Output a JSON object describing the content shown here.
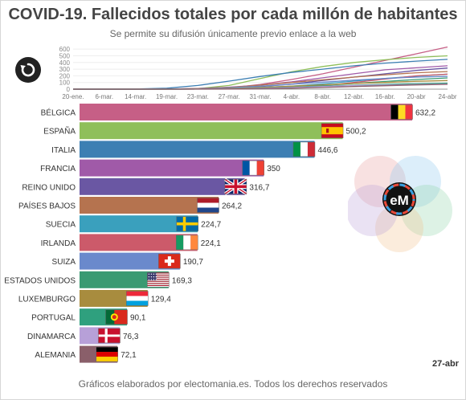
{
  "title": "COVID-19. Fallecidos totales por cada millón de habitantes",
  "subtitle": "Se permite su difusión únicamente previo enlace a la web",
  "footer": "Gráficos elaborados por electomania.es. Todos los derechos reservados",
  "current_date": "27-abr",
  "logo_text": "eM",
  "icons": {
    "replay": "replay-icon"
  },
  "chart_data": [
    {
      "type": "bar",
      "orientation": "horizontal",
      "title": "COVID-19. Fallecidos totales por cada millón de habitantes",
      "categories": [
        "BÉLGICA",
        "ESPAÑA",
        "ITALIA",
        "FRANCIA",
        "REINO UNIDO",
        "PAÍSES BAJOS",
        "SUECIA",
        "IRLANDA",
        "SUIZA",
        "ESTADOS UNIDOS",
        "LUXEMBURGO",
        "PORTUGAL",
        "DINAMARCA",
        "ALEMANIA"
      ],
      "values": [
        632.2,
        500.2,
        446.6,
        350,
        316.7,
        264.2,
        224.7,
        224.1,
        190.7,
        169.3,
        129.4,
        90.1,
        76.3,
        72.1
      ],
      "value_labels": [
        "632,2",
        "500,2",
        "446,6",
        "350",
        "316,7",
        "264,2",
        "224,7",
        "224,1",
        "190,7",
        "169,3",
        "129,4",
        "90,1",
        "76,3",
        "72,1"
      ],
      "colors": [
        "#c65f86",
        "#8fbf5a",
        "#3d7fb3",
        "#a05aa8",
        "#6a57a3",
        "#b5734f",
        "#3aa0bd",
        "#cc5a6a",
        "#6a89cc",
        "#3a9a72",
        "#a88c3e",
        "#2fa07e",
        "#b7a0d8",
        "#8a5f6a"
      ],
      "flags": [
        "belgium",
        "spain",
        "italy",
        "france",
        "uk",
        "netherlands",
        "sweden",
        "ireland",
        "switzerland",
        "usa",
        "luxembourg",
        "portugal",
        "denmark",
        "germany"
      ],
      "xlim": [
        0,
        632.2
      ]
    },
    {
      "type": "line",
      "x_ticks": [
        "20-ene.",
        "6-mar.",
        "14-mar.",
        "19-mar.",
        "23-mar.",
        "27-mar.",
        "31-mar.",
        "4-abr.",
        "8-abr.",
        "12-abr.",
        "16-abr.",
        "20-abr",
        "24-abr"
      ],
      "y_ticks": [
        0,
        100,
        200,
        300,
        400,
        500,
        600
      ],
      "ylim": [
        0,
        650
      ],
      "series": [
        {
          "color": "#c65f86",
          "values": [
            0,
            0,
            0,
            0,
            2,
            18,
            70,
            145,
            230,
            330,
            430,
            530,
            632
          ]
        },
        {
          "color": "#8fbf5a",
          "values": [
            0,
            0,
            0,
            1,
            8,
            55,
            160,
            260,
            340,
            400,
            440,
            475,
            500
          ]
        },
        {
          "color": "#3d7fb3",
          "values": [
            0,
            0,
            3,
            15,
            55,
            120,
            190,
            250,
            300,
            350,
            390,
            420,
            446
          ]
        },
        {
          "color": "#a05aa8",
          "values": [
            0,
            0,
            0,
            2,
            10,
            30,
            60,
            110,
            170,
            230,
            290,
            320,
            350
          ]
        },
        {
          "color": "#6a57a3",
          "values": [
            0,
            0,
            0,
            1,
            5,
            15,
            40,
            75,
            130,
            180,
            230,
            280,
            317
          ]
        },
        {
          "color": "#b5734f",
          "values": [
            0,
            0,
            0,
            1,
            8,
            25,
            60,
            100,
            140,
            180,
            215,
            245,
            264
          ]
        },
        {
          "color": "#3aa0bd",
          "values": [
            0,
            0,
            0,
            0,
            3,
            10,
            25,
            45,
            80,
            120,
            160,
            195,
            225
          ]
        },
        {
          "color": "#cc5a6a",
          "values": [
            0,
            0,
            0,
            0,
            1,
            3,
            10,
            25,
            50,
            100,
            150,
            200,
            224
          ]
        },
        {
          "color": "#6a89cc",
          "values": [
            0,
            0,
            0,
            1,
            5,
            20,
            45,
            75,
            105,
            135,
            160,
            180,
            191
          ]
        },
        {
          "color": "#3a9a72",
          "values": [
            0,
            0,
            0,
            0,
            1,
            5,
            15,
            30,
            55,
            85,
            115,
            145,
            169
          ]
        },
        {
          "color": "#a88c3e",
          "values": [
            0,
            0,
            0,
            0,
            3,
            10,
            25,
            45,
            65,
            85,
            100,
            118,
            129
          ]
        },
        {
          "color": "#2fa07e",
          "values": [
            0,
            0,
            0,
            0,
            1,
            5,
            15,
            30,
            45,
            60,
            72,
            83,
            90
          ]
        },
        {
          "color": "#b7a0d8",
          "values": [
            0,
            0,
            0,
            0,
            1,
            5,
            12,
            25,
            40,
            55,
            63,
            70,
            76
          ]
        },
        {
          "color": "#8a5f6a",
          "values": [
            0,
            0,
            0,
            0,
            0,
            2,
            6,
            14,
            25,
            40,
            52,
            64,
            72
          ]
        }
      ]
    }
  ]
}
